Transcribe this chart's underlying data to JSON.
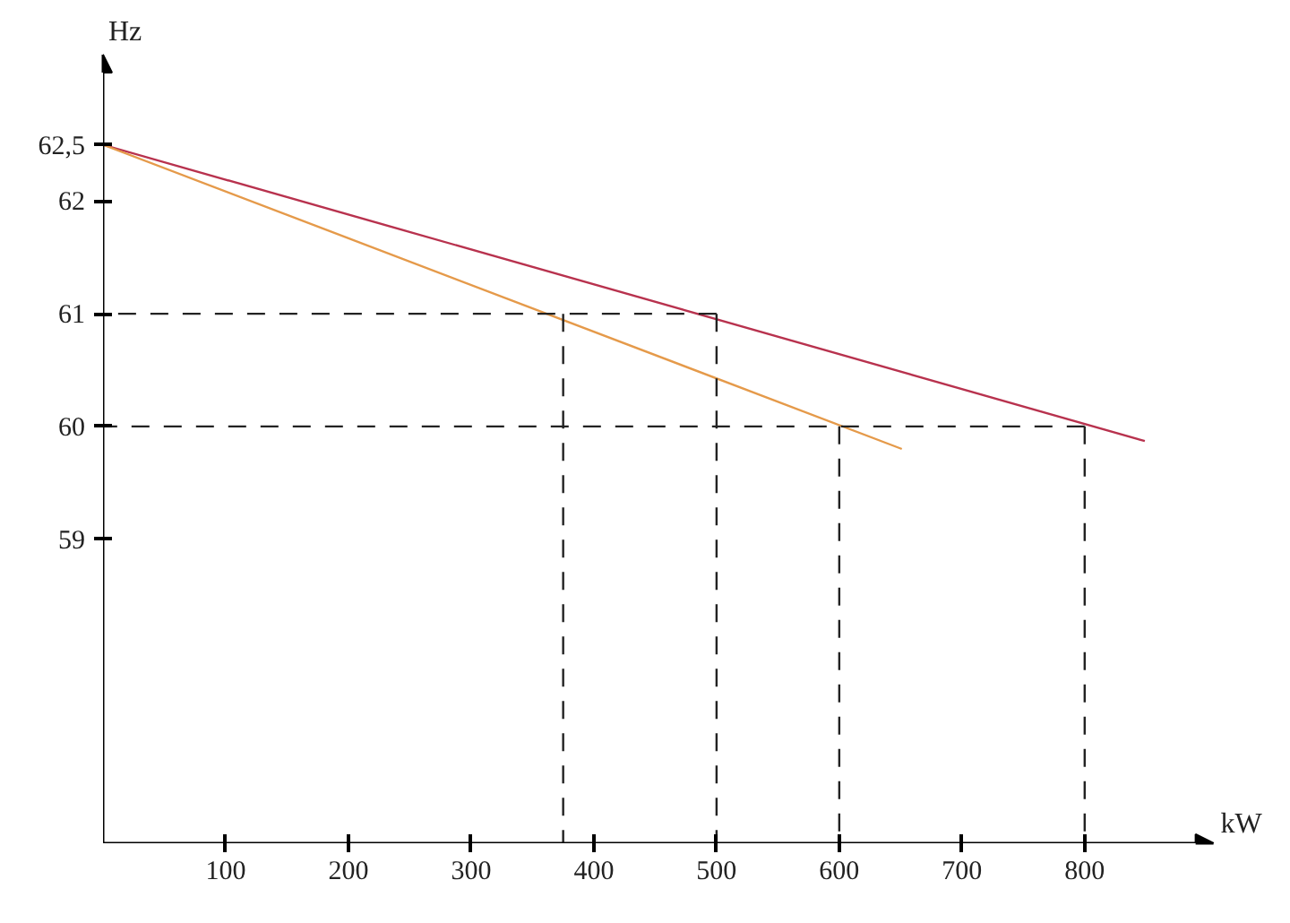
{
  "chart_data": {
    "type": "line",
    "xlabel": "kW",
    "ylabel": "Hz",
    "xlim": [
      0,
      905
    ],
    "ylim": [
      56.3,
      63.3
    ],
    "xticks": [
      100,
      200,
      300,
      400,
      500,
      600,
      700,
      800
    ],
    "yticks": [
      59,
      60,
      61,
      62,
      {
        "value": 62.5,
        "label": "62,5"
      }
    ],
    "grid": false,
    "marker": "none",
    "series": [
      {
        "color": "#b8324e",
        "x": [
          0,
          849
        ],
        "values": [
          62.5,
          59.87
        ],
        "line_style": "solid"
      },
      {
        "color": "#e59a4a",
        "x": [
          0,
          651
        ],
        "values": [
          62.5,
          59.8
        ],
        "line_style": "solid"
      },
      {
        "color": "#222222",
        "x": [
          500,
          0
        ],
        "values": [
          61,
          61
        ],
        "line_style": "dashed"
      },
      {
        "color": "#222222",
        "x": [
          800,
          0
        ],
        "values": [
          60,
          60
        ],
        "line_style": "dashed"
      },
      {
        "color": "#222222",
        "x": [
          375,
          375
        ],
        "values": [
          61,
          56.3
        ],
        "line_style": "dashed"
      },
      {
        "color": "#222222",
        "x": [
          500,
          500
        ],
        "values": [
          61,
          56.3
        ],
        "line_style": "dashed"
      },
      {
        "color": "#222222",
        "x": [
          600,
          600
        ],
        "values": [
          60,
          56.3
        ],
        "line_style": "dashed"
      },
      {
        "color": "#222222",
        "x": [
          800,
          800
        ],
        "values": [
          60,
          56.3
        ],
        "line_style": "dashed"
      }
    ]
  }
}
